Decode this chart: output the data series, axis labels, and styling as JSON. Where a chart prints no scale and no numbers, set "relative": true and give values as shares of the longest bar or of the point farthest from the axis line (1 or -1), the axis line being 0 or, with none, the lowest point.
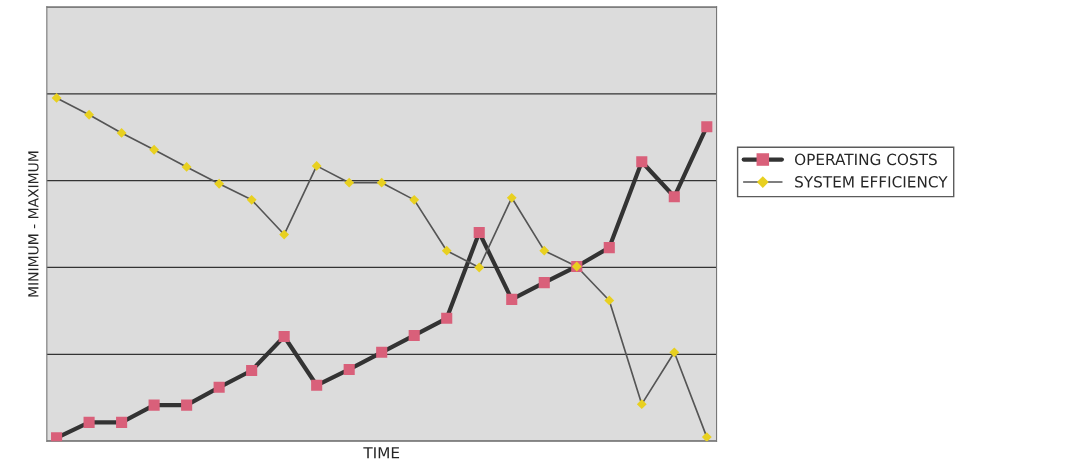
{
  "chart_data": {
    "type": "line",
    "relative": true,
    "xlabel": "TIME",
    "ylabel": "MINIMUM - MAXIMUM",
    "categories": [
      null,
      null,
      null,
      null,
      null,
      null,
      null,
      null,
      null,
      null,
      null,
      null,
      null,
      null,
      null,
      null,
      null,
      null,
      null,
      null,
      null
    ],
    "series": [
      {
        "name": "OPERATING COSTS",
        "color": "#333333",
        "colors": [
          "#d9607a",
          "#d9607a",
          "#d9607a",
          "#d9607a",
          "#d9607a",
          "#d9607a",
          "#d9607a",
          "#d9607a",
          "#d9607a",
          "#d9607a",
          "#d9607a",
          "#d9607a",
          "#d9607a",
          "#d9607a",
          "#d9607a",
          "#d9607a",
          "#d9607a",
          "#d9607a",
          "#d9607a",
          "#d9607a",
          "#d9607a"
        ],
        "marker": "square",
        "values": [
          0.01,
          0.055,
          0.055,
          0.105,
          0.105,
          0.157,
          0.206,
          0.305,
          0.163,
          0.209,
          0.259,
          0.308,
          0.358,
          0.608,
          0.413,
          0.462,
          0.509,
          0.564,
          0.814,
          0.712,
          0.916
        ]
      },
      {
        "name": "SYSTEM EFFICIENCY",
        "color": "#555555",
        "colors": [
          "#e8d020",
          "#e8d020",
          "#e8d020",
          "#e8d020",
          "#e8d020",
          "#e8d020",
          "#e8d020",
          "#e8d020",
          "#e8d020",
          "#e8d020",
          "#e8d020",
          "#e8d020",
          "#e8d020",
          "#e8d020",
          "#e8d020",
          "#e8d020",
          "#e8d020",
          "#e8d020",
          "#e8d020",
          "#e8d020",
          "#e8d020"
        ],
        "marker": "diamond",
        "values": [
          1,
          0.951,
          0.898,
          0.849,
          0.799,
          0.75,
          0.703,
          0.602,
          0.802,
          0.753,
          0.753,
          0.703,
          0.555,
          0.506,
          0.709,
          0.555,
          0.509,
          0.41,
          0.108,
          0.259,
          0.012
        ]
      }
    ],
    "grid": "y",
    "legend": "right",
    "line_style": "solid"
  }
}
